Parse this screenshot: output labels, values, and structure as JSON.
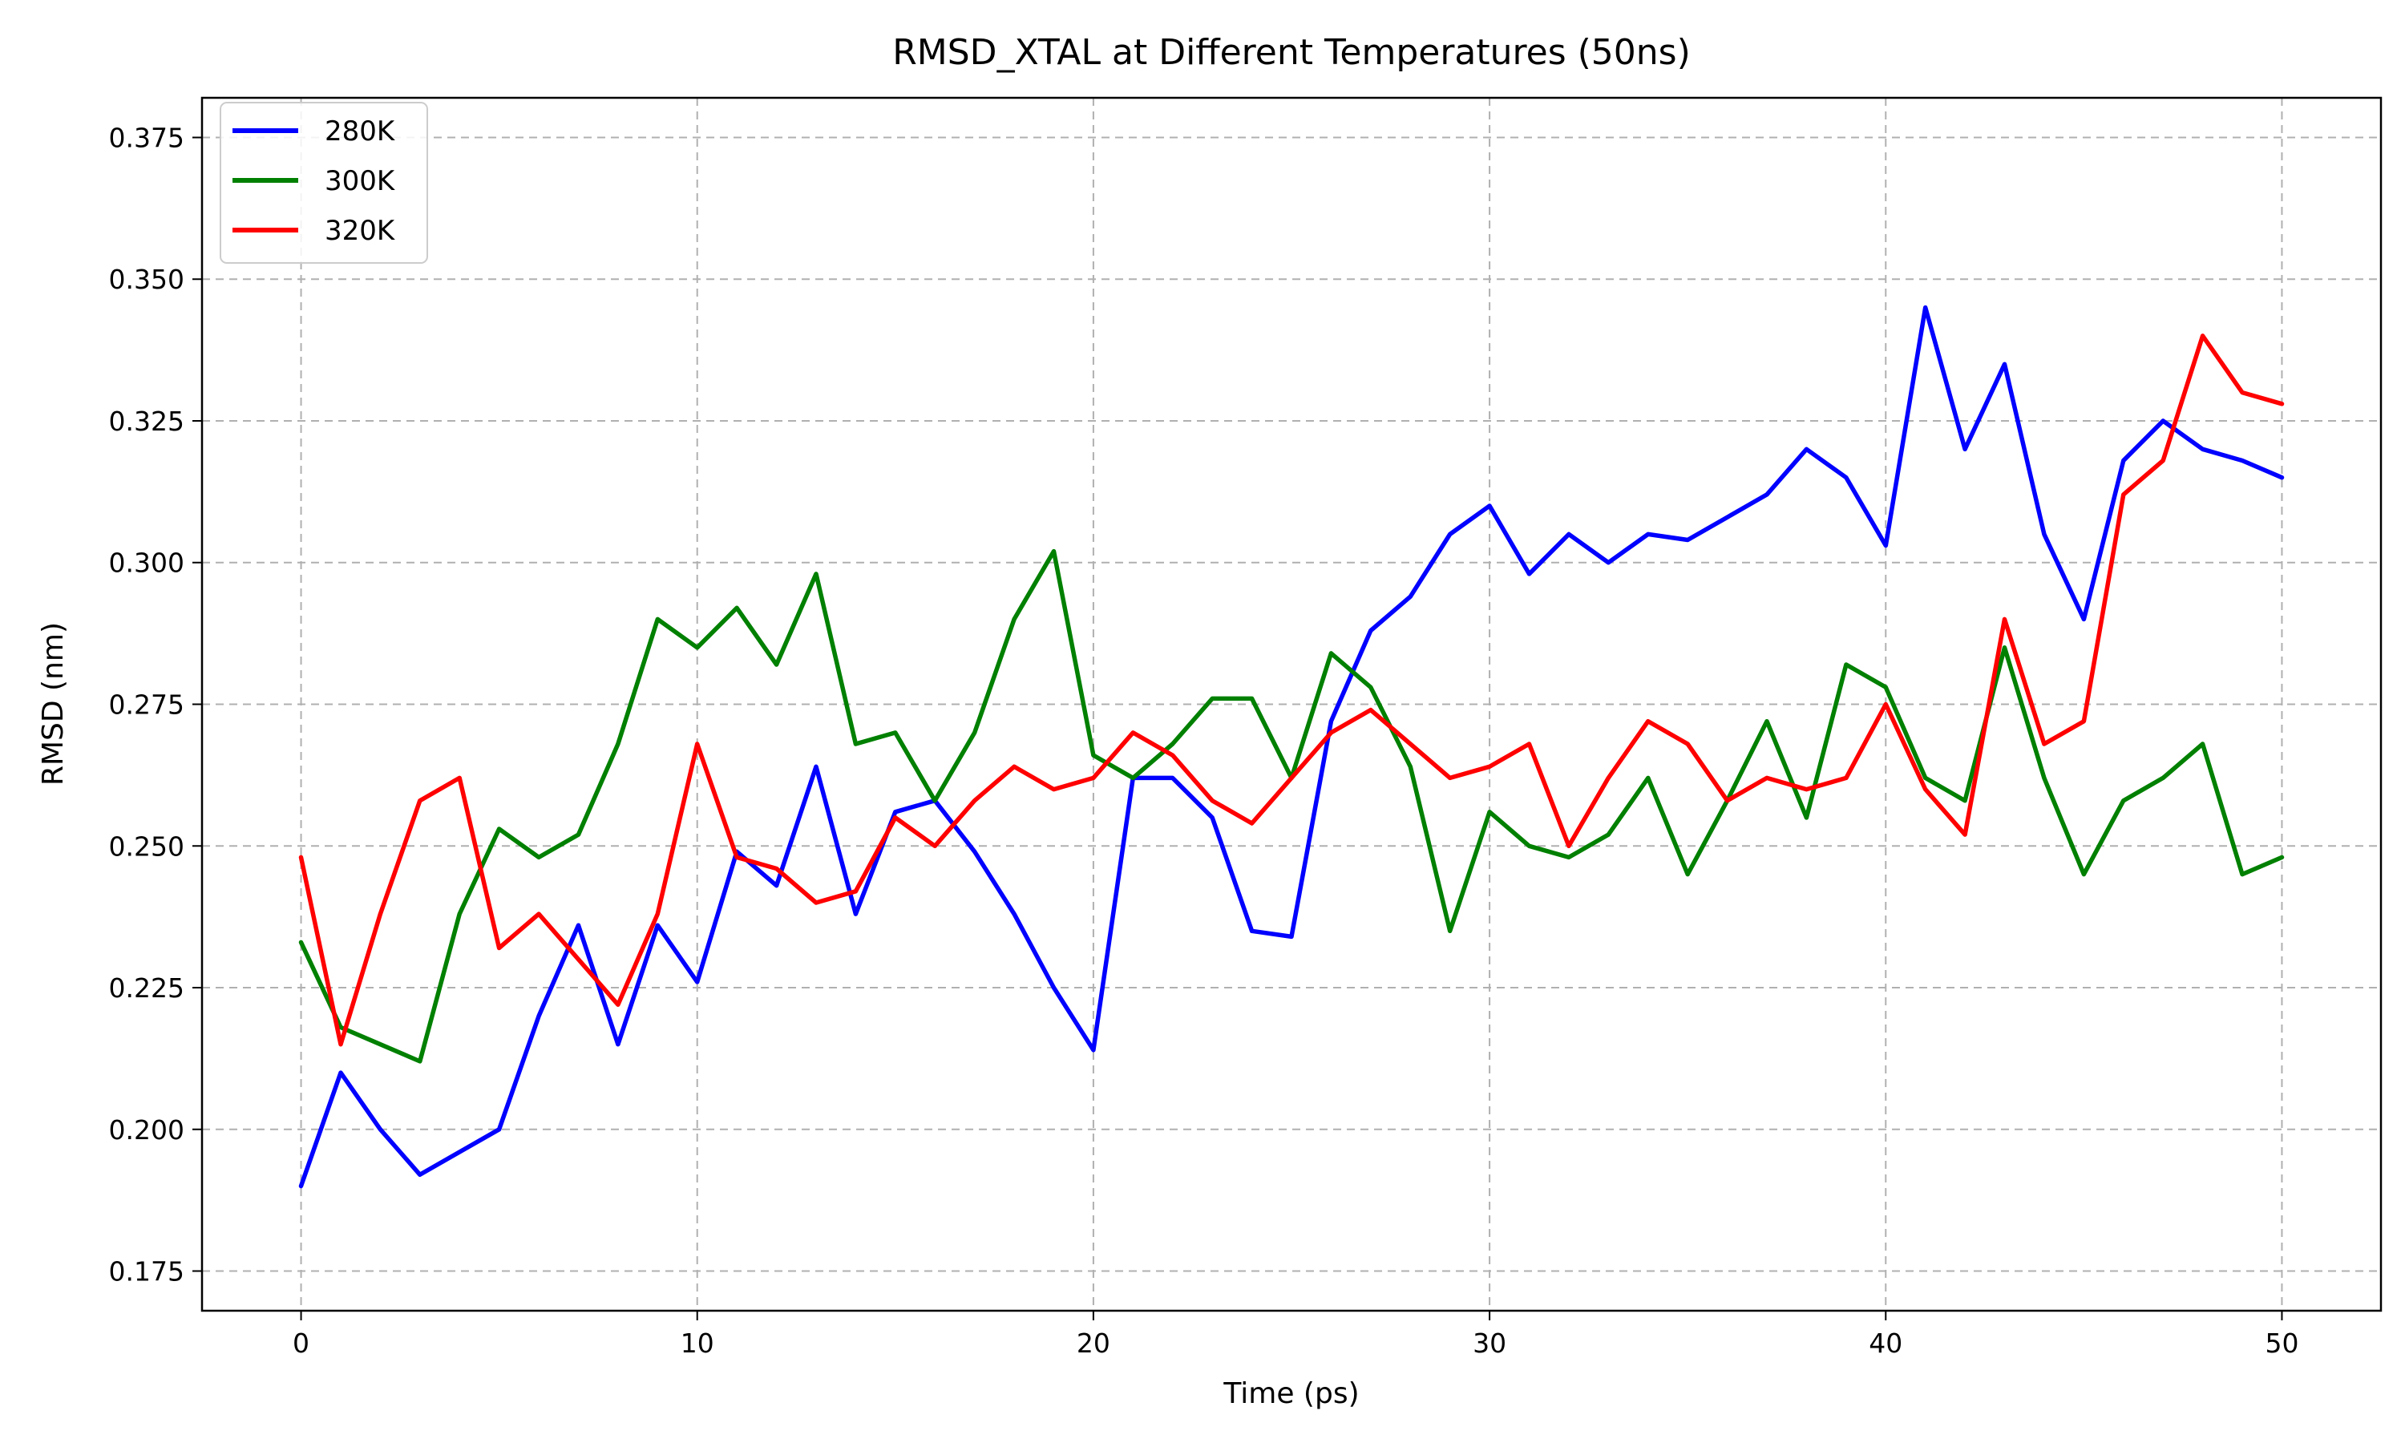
{
  "chart_data": {
    "type": "line",
    "title": "RMSD_XTAL at Different Temperatures (50ns)",
    "xlabel": "Time (ps)",
    "ylabel": "RMSD (nm)",
    "xlim": [
      -2.5,
      52.5
    ],
    "ylim": [
      0.168,
      0.382
    ],
    "xticks": [
      0,
      10,
      20,
      30,
      40,
      50
    ],
    "xtick_labels": [
      "0",
      "10",
      "20",
      "30",
      "40",
      "50"
    ],
    "yticks": [
      0.175,
      0.2,
      0.225,
      0.25,
      0.275,
      0.3,
      0.325,
      0.35,
      0.375
    ],
    "ytick_labels": [
      "0.175",
      "0.200",
      "0.225",
      "0.250",
      "0.275",
      "0.300",
      "0.325",
      "0.350",
      "0.375"
    ],
    "grid": true,
    "legend_position": "top-left",
    "x": [
      0,
      1,
      2,
      3,
      4,
      5,
      6,
      7,
      8,
      9,
      10,
      11,
      12,
      13,
      14,
      15,
      16,
      17,
      18,
      19,
      20,
      21,
      22,
      23,
      24,
      25,
      26,
      27,
      28,
      29,
      30,
      31,
      32,
      33,
      34,
      35,
      36,
      37,
      38,
      39,
      40,
      41,
      42,
      43,
      44,
      45,
      46,
      47,
      48,
      49,
      50
    ],
    "series": [
      {
        "name": "280K",
        "color": "#0000ff",
        "values": [
          0.19,
          0.21,
          0.2,
          0.192,
          0.196,
          0.2,
          0.22,
          0.236,
          0.215,
          0.236,
          0.226,
          0.249,
          0.243,
          0.264,
          0.238,
          0.256,
          0.258,
          0.249,
          0.238,
          0.225,
          0.214,
          0.262,
          0.262,
          0.255,
          0.235,
          0.234,
          0.272,
          0.288,
          0.294,
          0.305,
          0.31,
          0.298,
          0.305,
          0.3,
          0.305,
          0.304,
          0.308,
          0.312,
          0.32,
          0.315,
          0.303,
          0.345,
          0.32,
          0.335,
          0.305,
          0.29,
          0.318,
          0.325,
          0.32,
          0.318,
          0.315
        ]
      },
      {
        "name": "300K",
        "color": "#008000",
        "values": [
          0.233,
          0.218,
          0.215,
          0.212,
          0.238,
          0.253,
          0.248,
          0.252,
          0.268,
          0.29,
          0.285,
          0.292,
          0.282,
          0.298,
          0.268,
          0.27,
          0.258,
          0.27,
          0.29,
          0.302,
          0.266,
          0.262,
          0.268,
          0.276,
          0.276,
          0.262,
          0.284,
          0.278,
          0.264,
          0.235,
          0.256,
          0.25,
          0.248,
          0.252,
          0.262,
          0.245,
          0.258,
          0.272,
          0.255,
          0.282,
          0.278,
          0.262,
          0.258,
          0.285,
          0.262,
          0.245,
          0.258,
          0.262,
          0.268,
          0.245,
          0.248
        ]
      },
      {
        "name": "320K",
        "color": "#ff0000",
        "values": [
          0.248,
          0.215,
          0.238,
          0.258,
          0.262,
          0.232,
          0.238,
          0.23,
          0.222,
          0.238,
          0.268,
          0.248,
          0.246,
          0.24,
          0.242,
          0.255,
          0.25,
          0.258,
          0.264,
          0.26,
          0.262,
          0.27,
          0.266,
          0.258,
          0.254,
          0.262,
          0.27,
          0.274,
          0.268,
          0.262,
          0.264,
          0.268,
          0.25,
          0.262,
          0.272,
          0.268,
          0.258,
          0.262,
          0.26,
          0.262,
          0.275,
          0.26,
          0.252,
          0.29,
          0.268,
          0.272,
          0.312,
          0.318,
          0.34,
          0.33,
          0.328
        ]
      }
    ]
  }
}
